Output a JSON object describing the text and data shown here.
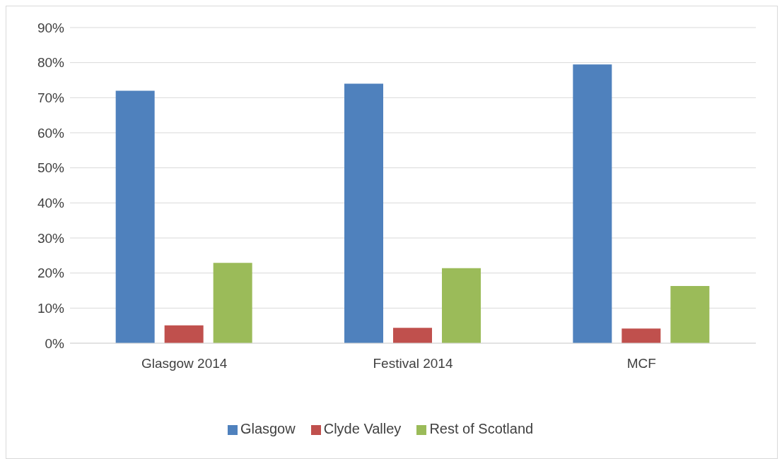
{
  "chart_data": {
    "type": "bar",
    "categories": [
      "Glasgow 2014",
      "Festival 2014",
      "MCF"
    ],
    "series": [
      {
        "name": "Glasgow",
        "color": "#4f81bd",
        "values": [
          72,
          74,
          79.5
        ]
      },
      {
        "name": "Clyde Valley",
        "color": "#c0504d",
        "values": [
          5.1,
          4.4,
          4.2
        ]
      },
      {
        "name": "Rest of Scotland",
        "color": "#9bbb59",
        "values": [
          22.9,
          21.4,
          16.3
        ]
      }
    ],
    "ylim": [
      0,
      90
    ],
    "yticks": [
      {
        "value": 0,
        "label": "0%"
      },
      {
        "value": 10,
        "label": "10%"
      },
      {
        "value": 20,
        "label": "20%"
      },
      {
        "value": 30,
        "label": "30%"
      },
      {
        "value": 40,
        "label": "40%"
      },
      {
        "value": 50,
        "label": "50%"
      },
      {
        "value": 60,
        "label": "60%"
      },
      {
        "value": 70,
        "label": "70%"
      },
      {
        "value": 80,
        "label": "80%"
      },
      {
        "value": 90,
        "label": "90%"
      }
    ],
    "grid": "y",
    "legend": "bottom"
  }
}
